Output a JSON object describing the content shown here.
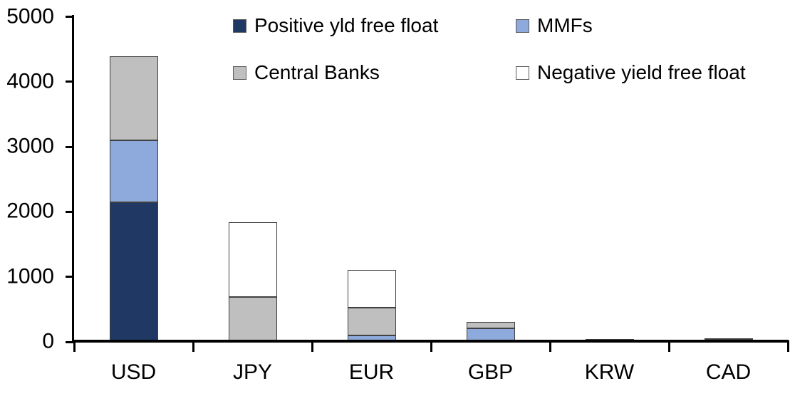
{
  "chart_data": {
    "type": "bar",
    "stacked": true,
    "title": "",
    "xlabel": "",
    "ylabel": "",
    "categories": [
      "USD",
      "JPY",
      "EUR",
      "GBP",
      "KRW",
      "CAD"
    ],
    "series": [
      {
        "name": "Positive yld free float",
        "color": "#203864",
        "values": [
          2150,
          0,
          0,
          0,
          40,
          30
        ]
      },
      {
        "name": "MMFs",
        "color": "#8EA9DB",
        "values": [
          950,
          0,
          100,
          210,
          0,
          0
        ]
      },
      {
        "name": "Central Banks",
        "color": "#BFBFBF",
        "values": [
          1290,
          690,
          425,
          100,
          0,
          25
        ]
      },
      {
        "name": "Negative yield free float",
        "color": "#FFFFFF",
        "values": [
          0,
          1150,
          580,
          0,
          0,
          0
        ]
      }
    ],
    "y_axis": {
      "min": 0,
      "max": 5000,
      "step": 1000,
      "tick_labels": [
        "0",
        "1000",
        "2000",
        "3000",
        "4000",
        "5000"
      ]
    },
    "ylim": [
      0,
      5000
    ],
    "grid": false,
    "legend": {
      "position": "top",
      "columns": 2,
      "order": [
        "Positive yld free float",
        "MMFs",
        "Central Banks",
        "Negative yield free float"
      ]
    },
    "colors": {
      "axis": "#000000",
      "text": "#000000",
      "segment_border": "#404040",
      "background": "#FFFFFF"
    }
  }
}
